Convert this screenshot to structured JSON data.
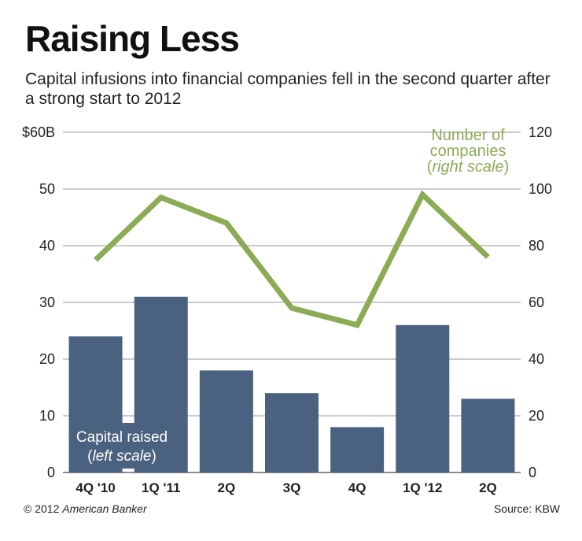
{
  "header": {
    "title": "Raising Less",
    "subtitle": "Capital infusions into financial companies fell in the second quarter after a strong start to 2012"
  },
  "footer": {
    "copyright": "© 2012",
    "publisher": "American Banker",
    "source": "Source: KBW"
  },
  "chart_data": {
    "type": "bar",
    "categories": [
      "4Q '10",
      "1Q '11",
      "2Q",
      "3Q",
      "4Q",
      "1Q '12",
      "2Q"
    ],
    "series": [
      {
        "name": "Capital raised",
        "scale_note": "left scale",
        "kind": "bar",
        "axis": "left",
        "values": [
          24,
          31,
          18,
          14,
          8,
          26,
          13
        ],
        "color": "#4a6180"
      },
      {
        "name": "Number of companies",
        "scale_note": "right scale",
        "kind": "line",
        "axis": "right",
        "values": [
          75,
          97,
          88,
          58,
          52,
          98,
          76
        ],
        "color": "#8cab55"
      }
    ],
    "left_axis": {
      "ticks": [
        "$60B",
        "50",
        "40",
        "30",
        "20",
        "10",
        "0"
      ],
      "ylim": [
        0,
        60
      ]
    },
    "right_axis": {
      "ticks": [
        "120",
        "100",
        "80",
        "60",
        "40",
        "20",
        "0"
      ],
      "ylim": [
        0,
        120
      ]
    },
    "legend": {
      "bar_label_line1": "Capital raised",
      "bar_label_line2": "left scale",
      "line_label_line1": "Number of",
      "line_label_line2": "companies",
      "line_label_line3": "right scale"
    },
    "colors": {
      "grid": "#9a9a9a",
      "background": "#ffffff"
    }
  }
}
